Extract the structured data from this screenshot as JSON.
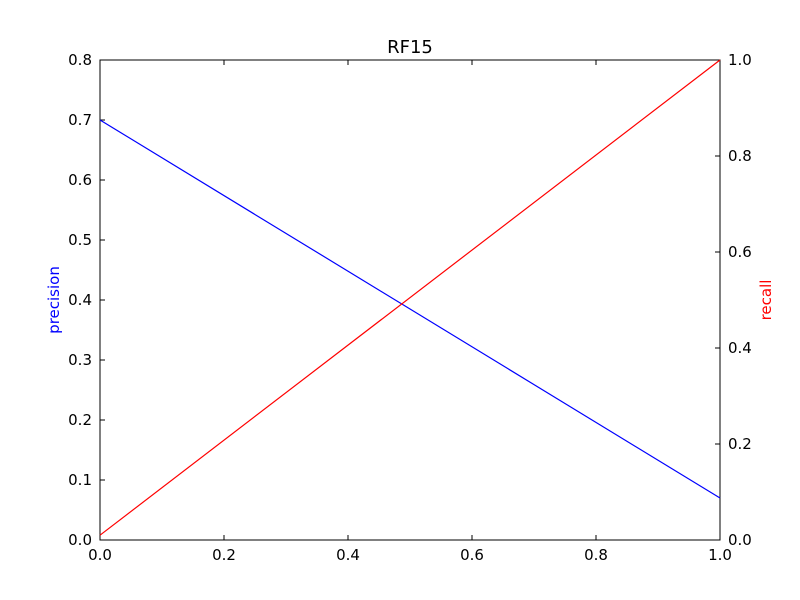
{
  "chart_data": {
    "type": "line",
    "title": "RF15",
    "xlabel": "",
    "xlim": [
      0.0,
      1.0
    ],
    "x_ticks": [
      "0.0",
      "0.2",
      "0.4",
      "0.6",
      "0.8",
      "1.0"
    ],
    "left_axis": {
      "label": "precision",
      "color": "#0000ff",
      "ylim": [
        0.0,
        0.8
      ],
      "ticks": [
        "0.0",
        "0.1",
        "0.2",
        "0.3",
        "0.4",
        "0.5",
        "0.6",
        "0.7",
        "0.8"
      ]
    },
    "right_axis": {
      "label": "recall",
      "color": "#ff0000",
      "ylim": [
        0.0,
        1.0
      ],
      "ticks": [
        "0.0",
        "0.2",
        "0.4",
        "0.6",
        "0.8",
        "1.0"
      ]
    },
    "series": [
      {
        "axis": "left",
        "color": "#0000ff",
        "x": [
          0.0,
          1.0
        ],
        "y": [
          0.7,
          0.07
        ]
      },
      {
        "axis": "right",
        "color": "#ff0000",
        "x": [
          0.0,
          1.0
        ],
        "y": [
          0.01,
          1.0
        ]
      }
    ],
    "grid": false,
    "legend": "none"
  }
}
